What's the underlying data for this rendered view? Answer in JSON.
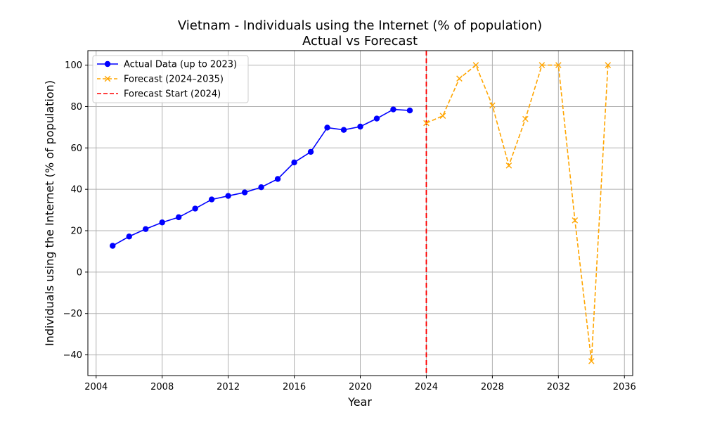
{
  "chart_data": {
    "type": "line",
    "title": "Vietnam - Individuals using the Internet (% of population)",
    "subtitle": "Actual vs Forecast",
    "xlabel": "Year",
    "ylabel": "Individuals using the Internet (% of population)",
    "xlim": [
      2003.5,
      2036.5
    ],
    "ylim": [
      -50,
      107
    ],
    "xticks": [
      2004,
      2008,
      2012,
      2016,
      2020,
      2024,
      2028,
      2032,
      2036
    ],
    "yticks": [
      -40,
      -20,
      0,
      20,
      40,
      60,
      80,
      100
    ],
    "grid": true,
    "legend_position": "top-left",
    "series": [
      {
        "name": "Actual Data (up to 2023)",
        "color": "#0000ff",
        "line_style": "solid",
        "marker": "circle",
        "x": [
          2005,
          2006,
          2007,
          2008,
          2009,
          2010,
          2011,
          2012,
          2013,
          2014,
          2015,
          2016,
          2017,
          2018,
          2019,
          2020,
          2021,
          2022,
          2023
        ],
        "y": [
          12.7,
          17.2,
          20.8,
          24.0,
          26.5,
          30.7,
          35.1,
          36.8,
          38.5,
          41.0,
          45.0,
          53.0,
          58.1,
          69.8,
          68.7,
          70.3,
          74.2,
          78.6,
          78.1
        ]
      },
      {
        "name": "Forecast (2024–2035)",
        "color": "#ffa500",
        "line_style": "dashed",
        "marker": "x",
        "x": [
          2024,
          2025,
          2026,
          2027,
          2028,
          2029,
          2030,
          2031,
          2032,
          2033,
          2034,
          2035
        ],
        "y": [
          72.0,
          75.5,
          93.5,
          100.0,
          80.5,
          51.5,
          74.0,
          100.0,
          100.0,
          25.0,
          -43.0,
          100.0
        ]
      }
    ],
    "reference_lines": [
      {
        "name": "Forecast Start (2024)",
        "x": 2024,
        "color": "#ff0000",
        "line_style": "dashed"
      }
    ]
  }
}
